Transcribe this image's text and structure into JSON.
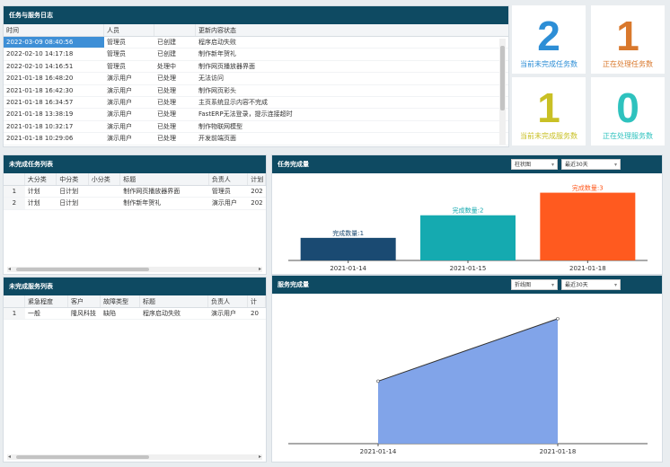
{
  "log_panel": {
    "title": "任务与服务日志",
    "columns": [
      "时间",
      "人员",
      "",
      "更新内容状态"
    ],
    "rows": [
      [
        "2022-03-09 08:40:56",
        "管理员",
        "已创建",
        "程序启动失败"
      ],
      [
        "2022-02-10 14:17:18",
        "管理员",
        "已创建",
        "制作新年贺礼"
      ],
      [
        "2022-02-10 14:16:51",
        "管理员",
        "处理中",
        "制作网页播放器界面"
      ],
      [
        "2021-01-18 16:48:20",
        "演示用户",
        "已处理",
        "无法访问"
      ],
      [
        "2021-01-18 16:42:30",
        "演示用户",
        "已处理",
        "制作网页彩头"
      ],
      [
        "2021-01-18 16:34:57",
        "演示用户",
        "已处理",
        "主页系统显示内容不完成"
      ],
      [
        "2021-01-18 13:38:19",
        "演示用户",
        "已处理",
        "FastERP无法登录，提示连接超时"
      ],
      [
        "2021-01-18 10:32:17",
        "演示用户",
        "已处理",
        "制作物联网模型"
      ],
      [
        "2021-01-18 10:29:06",
        "演示用户",
        "已处理",
        "开发前端页面"
      ]
    ]
  },
  "stats": [
    {
      "value": "2",
      "label": "当前未完成任务数",
      "color": "#2d8ed6"
    },
    {
      "value": "1",
      "label": "正在处理任务数",
      "color": "#d9782c"
    },
    {
      "value": "1",
      "label": "当前未完成服务数",
      "color": "#c9c025"
    },
    {
      "value": "0",
      "label": "正在处理服务数",
      "color": "#2ec2be"
    }
  ],
  "task_list": {
    "title": "未完成任务列表",
    "columns": [
      "",
      "大分类",
      "中分类",
      "小分类",
      "标题",
      "负责人",
      "计划"
    ],
    "rows": [
      [
        "1",
        "计划",
        "日计划",
        "",
        "制作网页播放器界面",
        "管理员",
        "202"
      ],
      [
        "2",
        "计划",
        "日计划",
        "",
        "制作新年贺礼",
        "演示用户",
        "202"
      ]
    ]
  },
  "service_list": {
    "title": "未完成服务列表",
    "columns": [
      "",
      "紧急程度",
      "客户",
      "故障类型",
      "标题",
      "负责人",
      "计"
    ],
    "rows": [
      [
        "1",
        "一般",
        "隆风科技",
        "缺陷",
        "程序启动失败",
        "演示用户",
        "20"
      ]
    ]
  },
  "task_chart": {
    "title": "任务完成量",
    "chart_type_select": "柱状图",
    "range_select": "最近30天"
  },
  "service_chart": {
    "title": "服务完成量",
    "chart_type_select": "折线图",
    "range_select": "最近30天"
  },
  "chart_data": [
    {
      "type": "bar",
      "categories": [
        "2021-01-14",
        "2021-01-15",
        "2021-01-18"
      ],
      "values": [
        1,
        2,
        3
      ],
      "data_labels": [
        "完成数量:1",
        "完成数量:2",
        "完成数量:3"
      ],
      "colors": [
        "#1a4a72",
        "#15aab0",
        "#ff5a1f"
      ],
      "ylim": [
        0,
        3.5
      ]
    },
    {
      "type": "area",
      "categories": [
        "2021-01-14",
        "2021-01-18"
      ],
      "values": [
        1,
        2
      ],
      "colors": [
        "#7a9fe8"
      ],
      "ylim": [
        0,
        2.3
      ]
    }
  ]
}
